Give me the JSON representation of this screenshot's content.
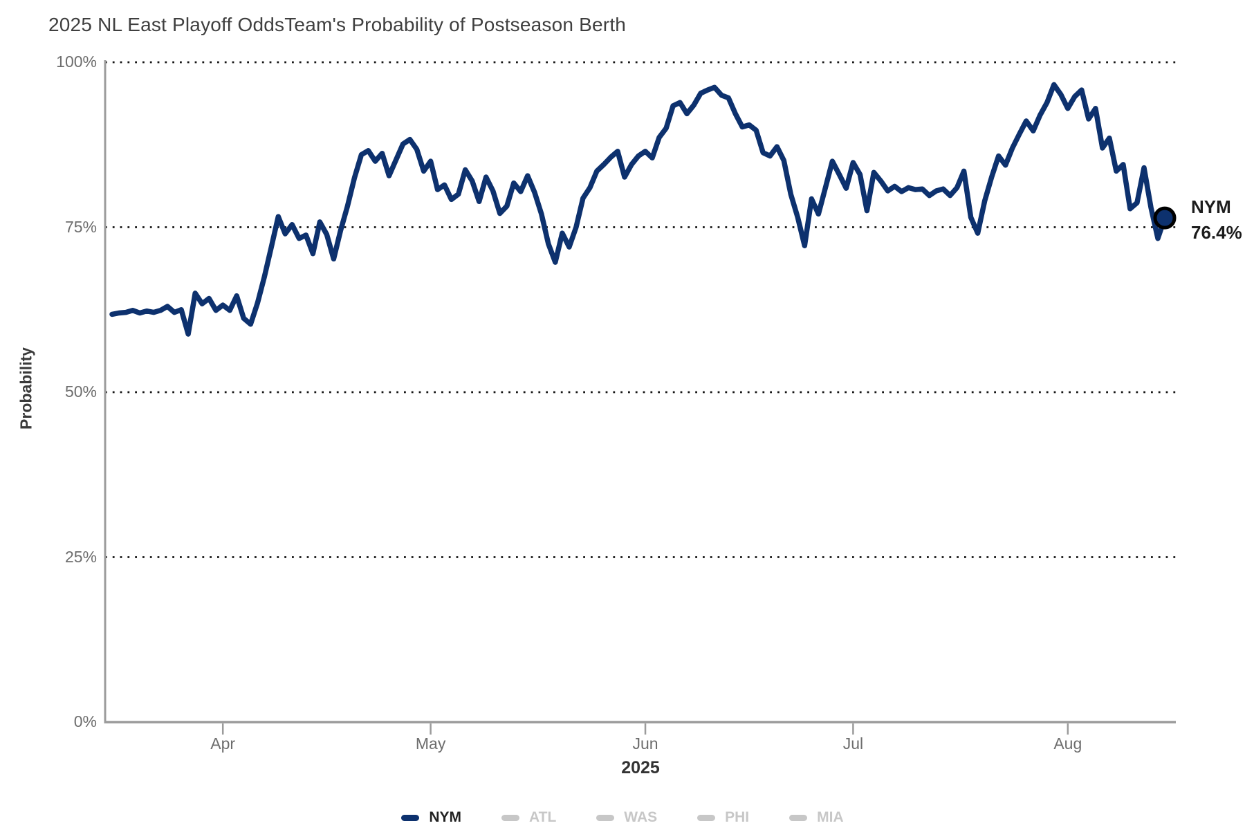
{
  "chart": {
    "title": "2025 NL East Playoff Odds",
    "subtitle": "Team's Probability of Postseason Berth",
    "ylabel": "Probability",
    "year_label": "2025",
    "end_label": {
      "team": "NYM",
      "value": "76.4%"
    },
    "colors": {
      "line": "#0d316e",
      "marker_ring": "#000000",
      "inactive": "#c7c7c7",
      "axis": "#9b9b9b",
      "grid_dots": "#161616",
      "title_text": "#3f3f3f",
      "tick_text": "#6d6d6d"
    }
  },
  "legend": {
    "items": [
      {
        "label": "NYM",
        "active": true
      },
      {
        "label": "ATL",
        "active": false
      },
      {
        "label": "WAS",
        "active": false
      },
      {
        "label": "PHI",
        "active": false
      },
      {
        "label": "MIA",
        "active": false
      }
    ]
  },
  "chart_data": {
    "type": "line",
    "title": "2025 NL East Playoff Odds",
    "subtitle": "Team's Probability of Postseason Berth",
    "xlabel": "2025",
    "ylabel": "Probability",
    "ylim": [
      0,
      100
    ],
    "grid": "dotted-horizontal",
    "legend_position": "bottom-center",
    "x_start": "2025-03-16",
    "x_end": "2025-08-15",
    "x_cadence": "daily",
    "yticks": [
      {
        "value": 100,
        "label": "100%"
      },
      {
        "value": 75,
        "label": "75%"
      },
      {
        "value": 50,
        "label": "50%"
      },
      {
        "value": 25,
        "label": "25%"
      },
      {
        "value": 0,
        "label": "0%"
      }
    ],
    "ygrid": [
      100,
      75,
      50,
      25
    ],
    "xticks": [
      {
        "date": "2025-04-01",
        "label": "Apr"
      },
      {
        "date": "2025-05-01",
        "label": "May"
      },
      {
        "date": "2025-06-01",
        "label": "Jun"
      },
      {
        "date": "2025-07-01",
        "label": "Jul"
      },
      {
        "date": "2025-08-01",
        "label": "Aug"
      }
    ],
    "series": [
      {
        "name": "NYM",
        "color": "#0d316e",
        "active": true,
        "values": [
          61.8,
          62.0,
          62.1,
          62.4,
          62.0,
          62.3,
          62.1,
          62.4,
          63.0,
          62.1,
          62.5,
          58.8,
          65.0,
          63.4,
          64.2,
          62.4,
          63.2,
          62.4,
          64.6,
          61.2,
          60.3,
          63.5,
          67.5,
          72.0,
          76.6,
          74.0,
          75.4,
          73.3,
          73.8,
          71.0,
          75.8,
          73.9,
          70.2,
          74.5,
          78.2,
          82.5,
          86.0,
          86.6,
          85.0,
          86.2,
          82.8,
          85.2,
          87.6,
          88.3,
          86.8,
          83.5,
          85.0,
          80.7,
          81.4,
          79.2,
          80.0,
          83.7,
          82.0,
          78.9,
          82.6,
          80.5,
          77.1,
          78.2,
          81.7,
          80.4,
          82.8,
          80.3,
          77.0,
          72.5,
          69.7,
          74.1,
          72.0,
          75.0,
          79.4,
          81.0,
          83.5,
          84.5,
          85.6,
          86.5,
          82.6,
          84.5,
          85.8,
          86.5,
          85.5,
          88.6,
          90.0,
          93.4,
          93.9,
          92.2,
          93.5,
          95.3,
          95.8,
          96.2,
          95.0,
          94.6,
          92.2,
          90.2,
          90.5,
          89.7,
          86.3,
          85.8,
          87.2,
          85.1,
          80.0,
          76.5,
          72.2,
          79.3,
          77.0,
          81.0,
          85.0,
          83.0,
          80.9,
          84.8,
          83.0,
          77.5,
          83.3,
          82.0,
          80.5,
          81.2,
          80.4,
          81.0,
          80.7,
          80.8,
          79.8,
          80.5,
          80.8,
          79.8,
          81.0,
          83.5,
          76.5,
          74.1,
          79.0,
          82.6,
          85.8,
          84.4,
          87.0,
          89.1,
          91.1,
          89.6,
          92.0,
          93.9,
          96.6,
          95.1,
          93.0,
          94.8,
          95.8,
          91.4,
          93.0,
          87.0,
          88.5,
          83.5,
          84.5,
          77.8,
          78.7,
          84.0,
          78.0,
          73.3,
          76.4
        ]
      },
      {
        "name": "ATL",
        "color": "#c7c7c7",
        "active": false,
        "values": []
      },
      {
        "name": "WAS",
        "color": "#c7c7c7",
        "active": false,
        "values": []
      },
      {
        "name": "PHI",
        "color": "#c7c7c7",
        "active": false,
        "values": []
      },
      {
        "name": "MIA",
        "color": "#c7c7c7",
        "active": false,
        "values": []
      }
    ],
    "end_point": {
      "series": "NYM",
      "date": "2025-08-15",
      "value": 76.4,
      "label": "NYM 76.4%"
    }
  }
}
